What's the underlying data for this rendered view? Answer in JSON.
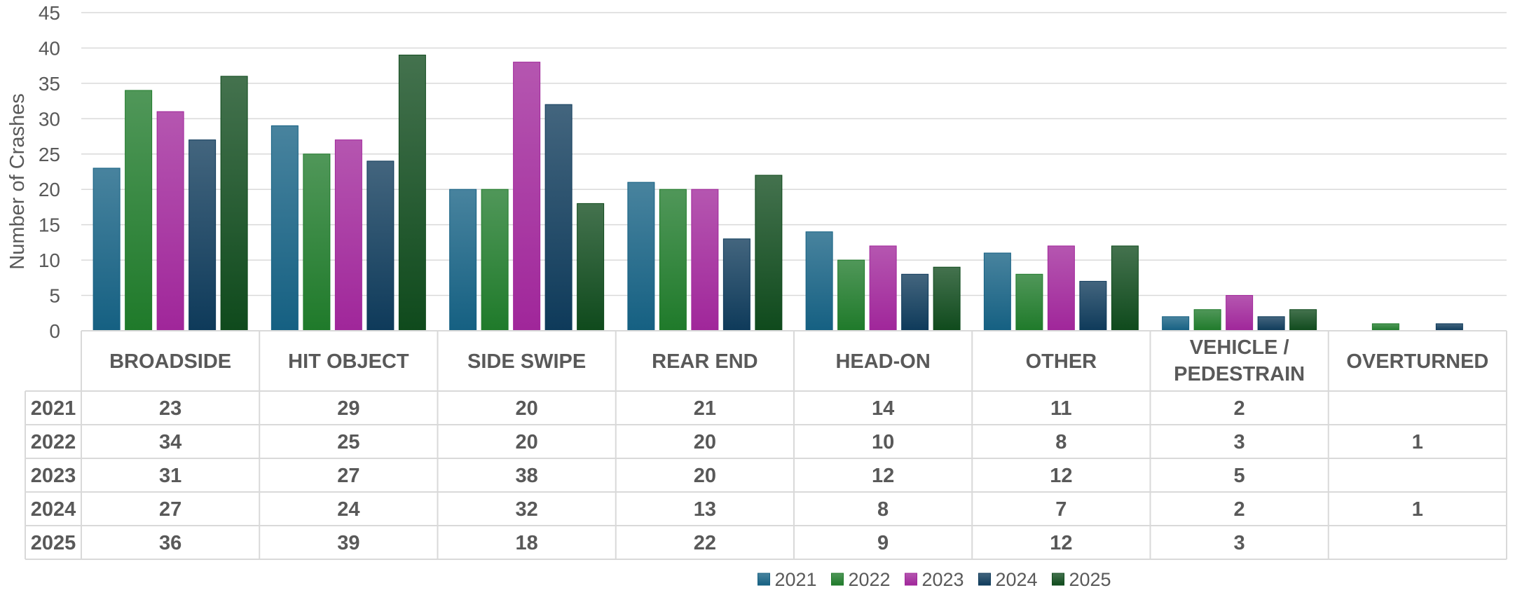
{
  "chart_data": {
    "type": "bar",
    "title": "",
    "ylabel": "Number of Crashes",
    "xlabel": "",
    "ylim": [
      0,
      45
    ],
    "yticks": [
      0,
      5,
      10,
      15,
      20,
      25,
      30,
      35,
      40,
      45
    ],
    "grid": true,
    "legend_position": "bottom",
    "categories": [
      "BROADSIDE",
      "HIT OBJECT",
      "SIDE SWIPE",
      "REAR END",
      "HEAD-ON",
      "OTHER",
      "VEHICLE / PEDESTRAIN",
      "OVERTURNED"
    ],
    "series": [
      {
        "name": "2021",
        "color": "#156082",
        "values": [
          23,
          29,
          20,
          21,
          14,
          11,
          2,
          null
        ]
      },
      {
        "name": "2022",
        "color": "#1f7a2a",
        "values": [
          34,
          25,
          20,
          20,
          10,
          8,
          3,
          1
        ]
      },
      {
        "name": "2023",
        "color": "#a0269a",
        "values": [
          31,
          27,
          38,
          20,
          12,
          12,
          5,
          null
        ]
      },
      {
        "name": "2024",
        "color": "#0e3a5a",
        "values": [
          27,
          24,
          32,
          13,
          8,
          7,
          2,
          1
        ]
      },
      {
        "name": "2025",
        "color": "#0f4a1c",
        "values": [
          36,
          39,
          18,
          22,
          9,
          12,
          3,
          null
        ]
      }
    ],
    "data_table": true
  }
}
